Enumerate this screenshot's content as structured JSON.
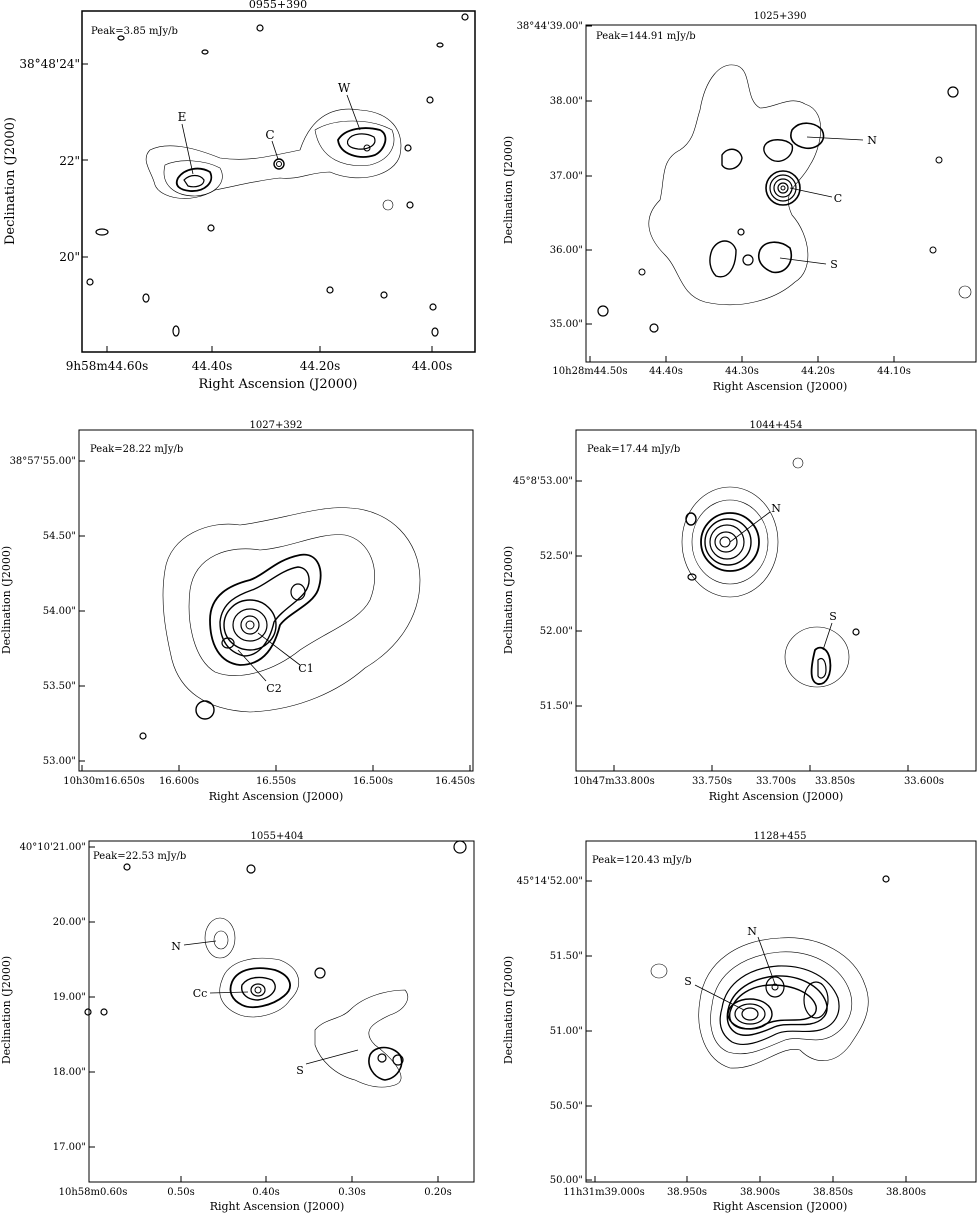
{
  "chart_data": [
    {
      "type": "contour",
      "title": "0955+390",
      "peak": "Peak=3.85 mJy/b",
      "xlabel": "Right Ascension (J2000)",
      "ylabel": "Declination (J2000)",
      "xticks": [
        "9h58m44.60s",
        "44.40s",
        "44.20s",
        "44.00s"
      ],
      "yticks": [
        "38°48'24\"",
        "22\"",
        "20\""
      ],
      "components": [
        "E",
        "C",
        "W"
      ]
    },
    {
      "type": "contour",
      "title": "1025+390",
      "peak": "Peak=144.91 mJy/b",
      "xlabel": "Right Ascension (J2000)",
      "ylabel": "Declination (J2000)",
      "xticks": [
        "10h28m44.50s",
        "44.40s",
        "44.30s",
        "44.20s",
        "44.10s"
      ],
      "yticks": [
        "38°44'39.00\"",
        "38.00\"",
        "37.00\"",
        "36.00\"",
        "35.00\""
      ],
      "components": [
        "N",
        "C",
        "S"
      ]
    },
    {
      "type": "contour",
      "title": "1027+392",
      "peak": "Peak=28.22 mJy/b",
      "xlabel": "Right Ascension (J2000)",
      "ylabel": "Declination (J2000)",
      "xticks": [
        "10h30m16.650s",
        "16.600s",
        "16.550s",
        "16.500s",
        "16.450s"
      ],
      "yticks": [
        "38°57'55.00\"",
        "54.50\"",
        "54.00\"",
        "53.50\"",
        "53.00\""
      ],
      "components": [
        "C1",
        "C2"
      ]
    },
    {
      "type": "contour",
      "title": "1044+454",
      "peak": "Peak=17.44 mJy/b",
      "xlabel": "Right Ascension (J2000)",
      "ylabel": "Declination (J2000)",
      "xticks": [
        "10h47m33.800s",
        "33.750s",
        "33.700s",
        "33.850s",
        "33.600s"
      ],
      "yticks": [
        "45°8'53.00\"",
        "52.50\"",
        "52.00\"",
        "51.50\""
      ],
      "components": [
        "N",
        "S"
      ]
    },
    {
      "type": "contour",
      "title": "1055+404",
      "peak": "Peak=22.53 mJy/b",
      "xlabel": "Right Ascension (J2000)",
      "ylabel": "Declination (J2000)",
      "xticks": [
        "10h58m0.60s",
        "0.50s",
        "0.40s",
        "0.30s",
        "0.20s"
      ],
      "yticks": [
        "40°10'21.00\"",
        "20.00\"",
        "19.00\"",
        "18.00\"",
        "17.00\""
      ],
      "components": [
        "N",
        "Cc",
        "S"
      ]
    },
    {
      "type": "contour",
      "title": "1128+455",
      "peak": "Peak=120.43 mJy/b",
      "xlabel": "Right Ascension (J2000)",
      "ylabel": "Declination (J2000)",
      "xticks": [
        "11h31m39.000s",
        "38.950s",
        "38.900s",
        "38.850s",
        "38.800s"
      ],
      "yticks": [
        "45°14'52.00\"",
        "51.50\"",
        "51.00\"",
        "50.50\"",
        "50.00\""
      ],
      "components": [
        "N",
        "S"
      ]
    }
  ]
}
